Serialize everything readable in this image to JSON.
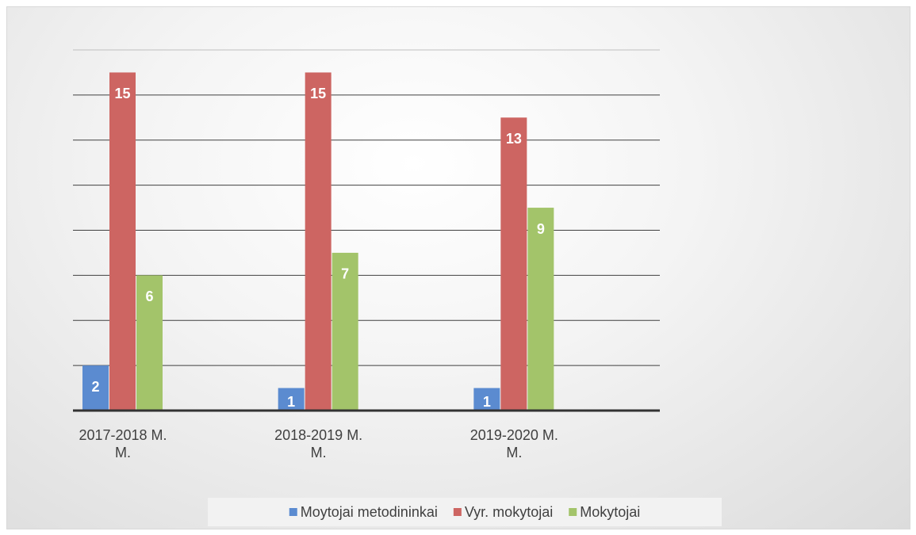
{
  "chart_data": {
    "type": "bar",
    "categories": [
      "2017-2018 M. M.",
      "2018-2019 M. M.",
      "2019-2020 M. M."
    ],
    "series": [
      {
        "name": "Moytojai metodininkai",
        "color": "#5b8bd0",
        "values": [
          2,
          1,
          1
        ]
      },
      {
        "name": "Vyr. mokytojai",
        "color": "#cd6562",
        "values": [
          15,
          15,
          13
        ]
      },
      {
        "name": "Mokytojai",
        "color": "#a3c46a",
        "values": [
          6,
          7,
          9
        ]
      }
    ],
    "ylim": [
      0,
      16
    ],
    "yticks": [
      0,
      2,
      4,
      6,
      8,
      10,
      12,
      14,
      16
    ],
    "grid": true,
    "legend": "bottom"
  }
}
